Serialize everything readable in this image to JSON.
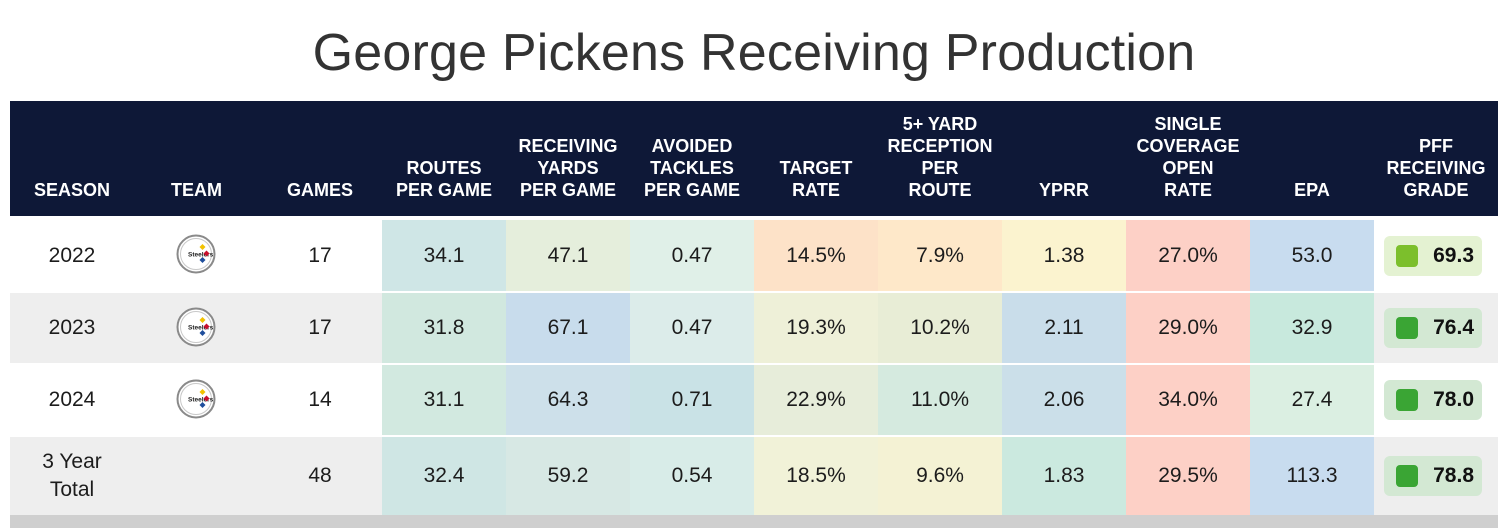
{
  "title": "George Pickens Receiving Production",
  "chart_data": {
    "type": "table",
    "title": "George Pickens Receiving Production",
    "columns": [
      "SEASON",
      "TEAM",
      "GAMES",
      "ROUTES PER GAME",
      "RECEIVING YARDS PER GAME",
      "AVOIDED TACKLES PER GAME",
      "TARGET RATE",
      "5+ YARD RECEPTION PER ROUTE",
      "YPRR",
      "SINGLE COVERAGE OPEN RATE",
      "EPA",
      "PFF RECEIVING GRADE"
    ],
    "header_lines": [
      [
        "SEASON"
      ],
      [
        "TEAM"
      ],
      [
        "GAMES"
      ],
      [
        "ROUTES",
        "PER GAME"
      ],
      [
        "RECEIVING",
        "YARDS",
        "PER GAME"
      ],
      [
        "AVOIDED",
        "TACKLES",
        "PER GAME"
      ],
      [
        "TARGET",
        "RATE"
      ],
      [
        "5+ YARD",
        "RECEPTION",
        "PER",
        "ROUTE"
      ],
      [
        "YPRR"
      ],
      [
        "SINGLE",
        "COVERAGE",
        "OPEN",
        "RATE"
      ],
      [
        "EPA"
      ],
      [
        "PFF",
        "RECEIVING",
        "GRADE"
      ]
    ],
    "rows": [
      {
        "season": "2022",
        "team_logo": "steelers-logo",
        "games": "17",
        "values": [
          "34.1",
          "47.1",
          "0.47",
          "14.5%",
          "7.9%",
          "1.38",
          "27.0%",
          "53.0"
        ],
        "grade": "69.3",
        "colors": [
          "#cfe6e6",
          "#e5eedc",
          "#e0f0e8",
          "#fde2c8",
          "#fee8c9",
          "#fbf3cf",
          "#fdd0c6",
          "#c8dcef"
        ],
        "grade_bg": "#e4f2d2",
        "grade_sq": "#7cbf2c"
      },
      {
        "season": "2023",
        "team_logo": "steelers-logo",
        "games": "17",
        "values": [
          "31.8",
          "67.1",
          "0.47",
          "19.3%",
          "10.2%",
          "2.11",
          "29.0%",
          "32.9"
        ],
        "grade": "76.4",
        "colors": [
          "#d1e8df",
          "#c8dcec",
          "#dcecea",
          "#eef0d8",
          "#e8edd6",
          "#c9ddea",
          "#fdd0c6",
          "#c8e9dd"
        ],
        "grade_bg": "#d3e8d3",
        "grade_sq": "#3aa534"
      },
      {
        "season": "2024",
        "team_logo": "steelers-logo",
        "games": "14",
        "values": [
          "31.1",
          "64.3",
          "0.71",
          "22.9%",
          "11.0%",
          "2.06",
          "34.0%",
          "27.4"
        ],
        "grade": "78.0",
        "colors": [
          "#d2e9e0",
          "#cde0ea",
          "#c9e2e6",
          "#e7edda",
          "#d5eadf",
          "#cbdfe9",
          "#fdd0c6",
          "#dbefe2"
        ],
        "grade_bg": "#d3e8d3",
        "grade_sq": "#3aa534"
      },
      {
        "season": "3 Year\nTotal",
        "team_logo": "",
        "games": "48",
        "values": [
          "32.4",
          "59.2",
          "0.54",
          "18.5%",
          "9.6%",
          "1.83",
          "29.5%",
          "113.3"
        ],
        "grade": "78.8",
        "colors": [
          "#cfe6e4",
          "#d7e8e4",
          "#d8ece8",
          "#f1f2d8",
          "#f4f2d4",
          "#cbe9df",
          "#fdd0c6",
          "#c8dcef"
        ],
        "grade_bg": "#d3e8d3",
        "grade_sq": "#3aa534"
      }
    ],
    "row_backgrounds": [
      "#ffffff",
      "#eeeeee",
      "#ffffff",
      "#eeeeee"
    ],
    "header_color": "#0e1837"
  }
}
